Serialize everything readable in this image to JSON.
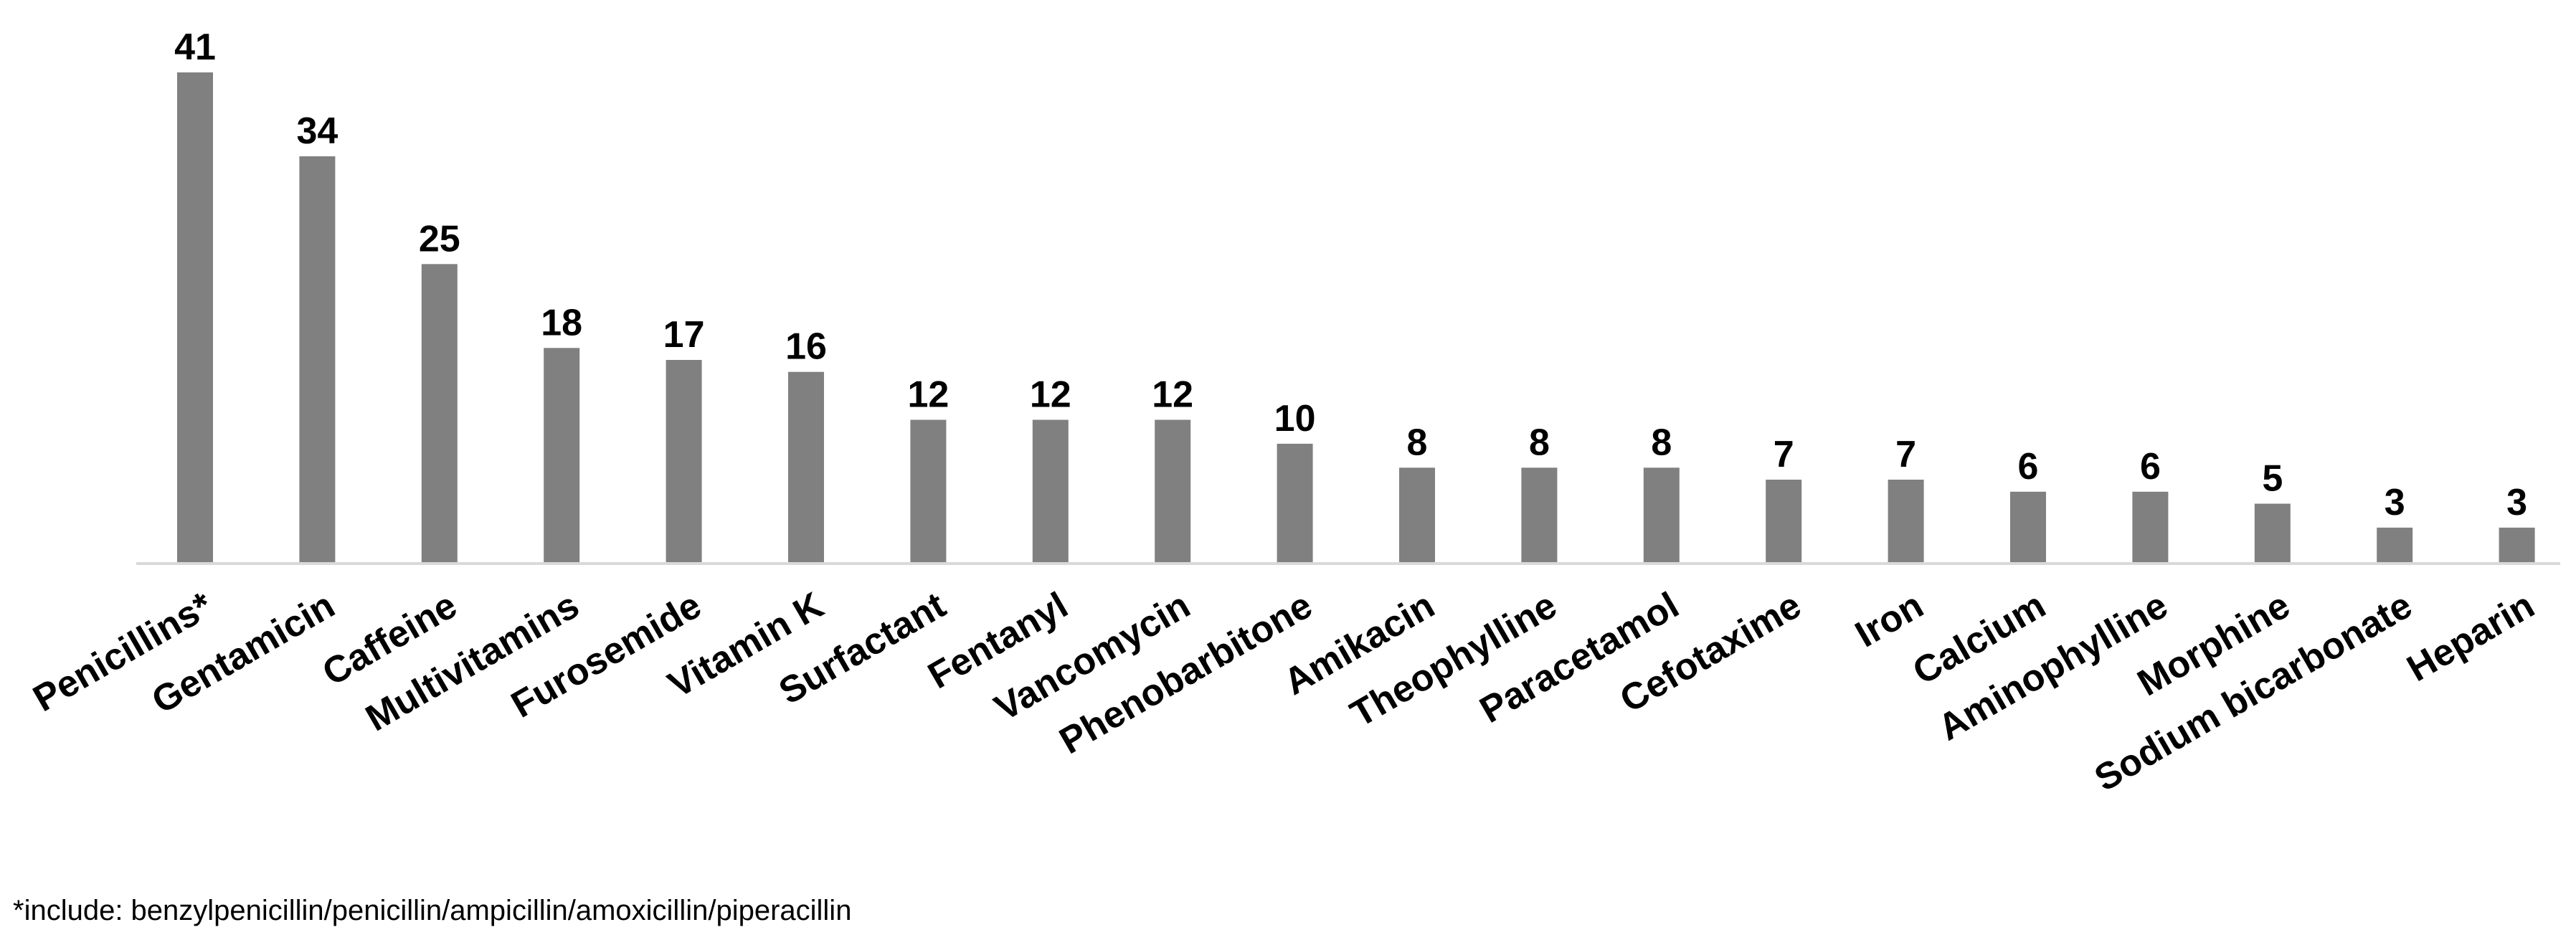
{
  "chart_data": {
    "type": "bar",
    "categories": [
      "Penicillins*",
      "Gentamicin",
      "Caffeine",
      "Multivitamins",
      "Furosemide",
      "Vitamin K",
      "Surfactant",
      "Fentanyl",
      "Vancomycin",
      "Phenobarbitone",
      "Amikacin",
      "Theophylline",
      "Paracetamol",
      "Cefotaxime",
      "Iron",
      "Calcium",
      "Aminophylline",
      "Morphine",
      "Sodium bicarbonate",
      "Heparin"
    ],
    "values": [
      41,
      34,
      25,
      18,
      17,
      16,
      12,
      12,
      12,
      10,
      8,
      8,
      8,
      7,
      7,
      6,
      6,
      5,
      3,
      3
    ],
    "data_labels": [
      "41",
      "34",
      "25",
      "18",
      "17",
      "16",
      "12",
      "12",
      "12",
      "10",
      "8",
      "8",
      "8",
      "7",
      "7",
      "6",
      "6",
      "5",
      "3",
      "3"
    ],
    "title": "",
    "xlabel": "",
    "ylabel": "",
    "ylim": [
      0,
      41
    ],
    "grid": false,
    "legend": "none",
    "bar_color": "#808080",
    "axis_color": "#d9d9d9"
  },
  "footnote": "*include: benzylpenicillin/penicillin/ampicillin/amoxicillin/piperacillin"
}
